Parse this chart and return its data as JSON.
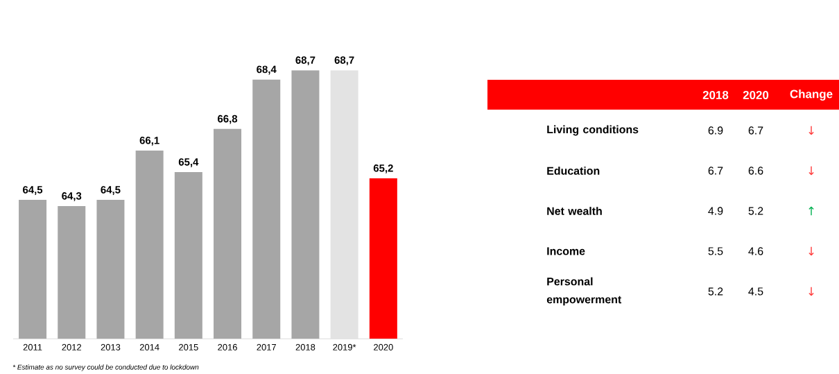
{
  "chart_data": [
    {
      "type": "bar",
      "categories": [
        "2011",
        "2012",
        "2013",
        "2014",
        "2015",
        "2016",
        "2017",
        "2018",
        "2019*",
        "2020"
      ],
      "values": [
        64.5,
        64.3,
        64.5,
        66.1,
        65.4,
        66.8,
        68.4,
        68.7,
        68.7,
        65.2
      ],
      "colors": [
        "#a6a6a6",
        "#a6a6a6",
        "#a6a6a6",
        "#a6a6a6",
        "#a6a6a6",
        "#a6a6a6",
        "#a6a6a6",
        "#a6a6a6",
        "#e3e3e3",
        "#ff0000"
      ],
      "value_labels": [
        "64,5",
        "64,3",
        "64,5",
        "66,1",
        "65,4",
        "66,8",
        "68,4",
        "68,7",
        "68,7",
        "65,2"
      ],
      "ylim": [
        60,
        68.7
      ],
      "tick_labels": "x",
      "annotations": [
        "* Estimate  as no survey could be conducted due to lockdown"
      ]
    },
    {
      "type": "other",
      "categories": [
        "Living conditions",
        "Education",
        "Net wealth",
        "Income",
        "Personal empowerment"
      ],
      "series": [
        {
          "name": "2018",
          "values": [
            6.9,
            6.7,
            4.9,
            5.5,
            5.2
          ]
        },
        {
          "name": "2020",
          "values": [
            6.7,
            6.6,
            5.2,
            4.6,
            4.5
          ]
        },
        {
          "name": "Change",
          "values": [
            null,
            null,
            null,
            null,
            null
          ],
          "value_labels": [
            "↓",
            "↓",
            "↑",
            "↓",
            "↓"
          ],
          "colors": [
            "#ff3b3b",
            "#ff3b3b",
            "#00b050",
            "#ff3b3b",
            "#ff3b3b"
          ]
        }
      ],
      "data_labels": true
    }
  ]
}
